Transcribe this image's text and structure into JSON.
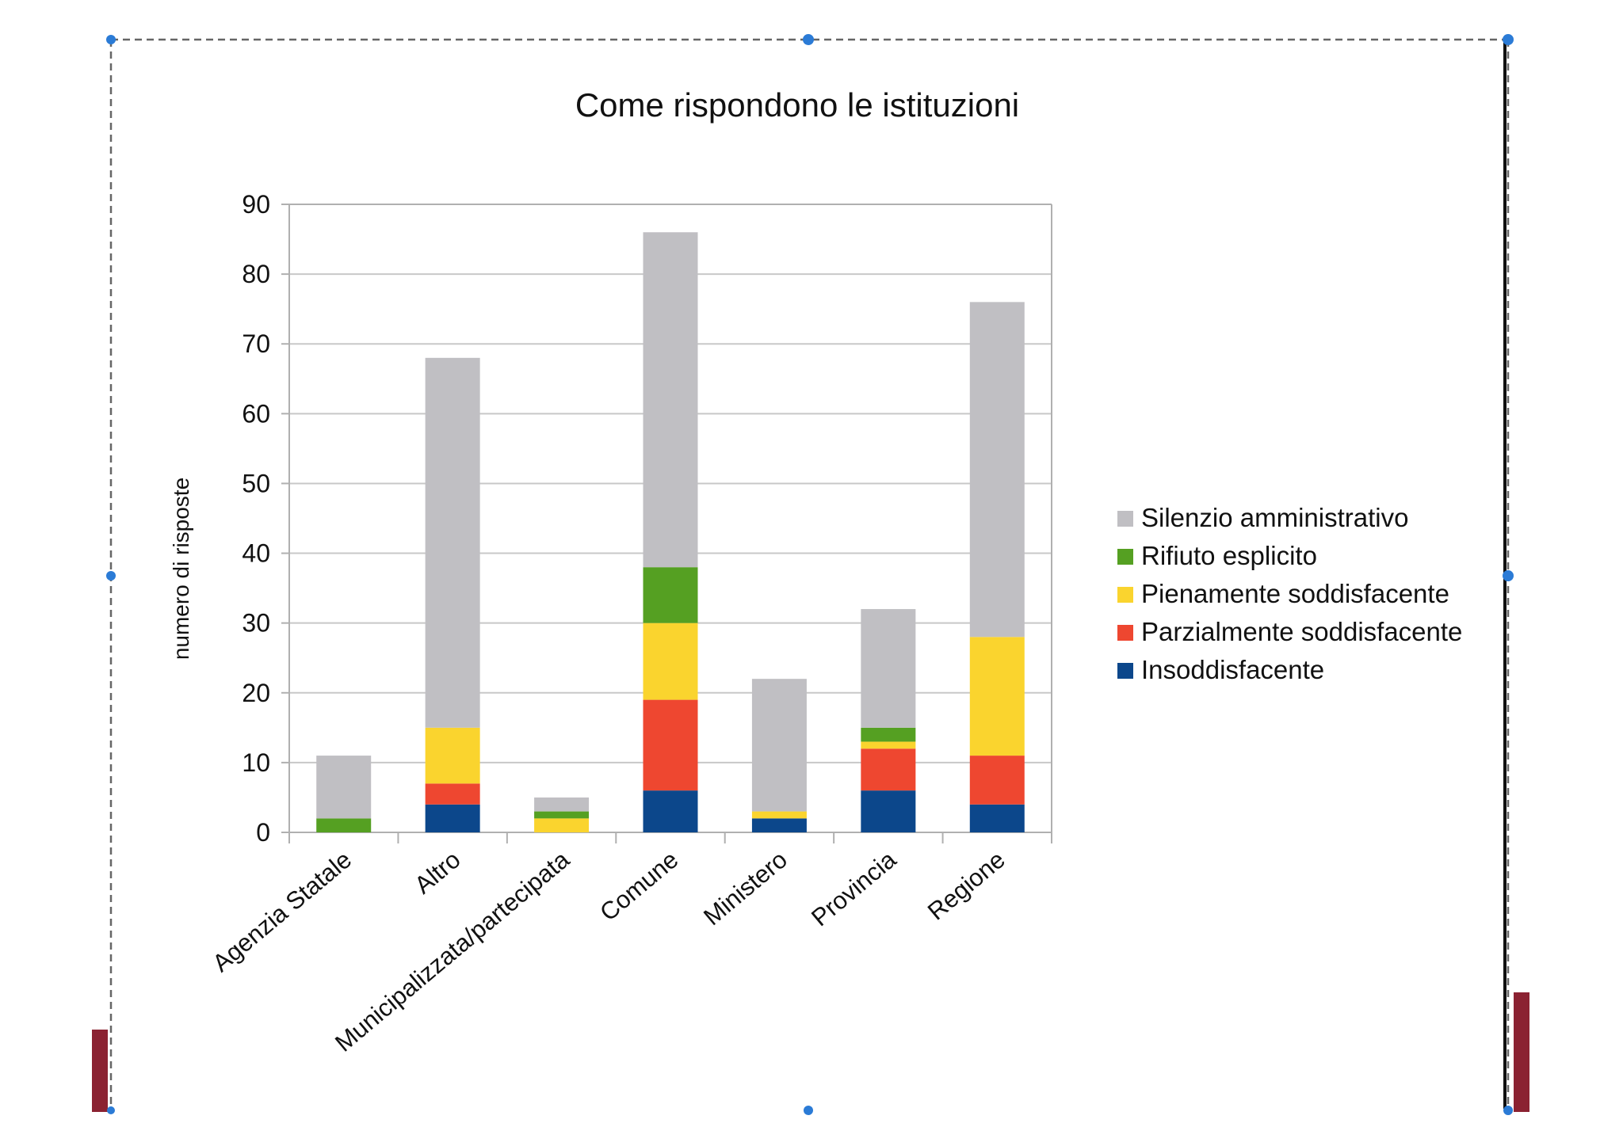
{
  "colors": {
    "silenzio": "#c0bfc3",
    "rifiuto": "#55a022",
    "pienamente": "#fad42e",
    "parzialmente": "#ee4730",
    "insoddisfacente": "#0c478b",
    "accent_bar": "#8b2232",
    "handle": "#2b7bd6"
  },
  "chart_data": {
    "type": "bar",
    "stacked": true,
    "title": "Come rispondono le istituzioni",
    "xlabel": "",
    "ylabel": "numero di risposte",
    "ylim": [
      0,
      90
    ],
    "yticks": [
      0,
      10,
      20,
      30,
      40,
      50,
      60,
      70,
      80,
      90
    ],
    "grid": true,
    "legend_position": "right",
    "categories": [
      "Agenzia Statale",
      "Altro",
      "Municipalizzata/partecipata",
      "Comune",
      "Ministero",
      "Provincia",
      "Regione"
    ],
    "series": [
      {
        "name": "Insoddisfacente",
        "key": "insoddisfacente",
        "values": [
          0,
          4,
          0,
          6,
          2,
          6,
          4
        ]
      },
      {
        "name": "Parzialmente soddisfacente",
        "key": "parzialmente",
        "values": [
          0,
          3,
          0,
          13,
          0,
          6,
          7
        ]
      },
      {
        "name": "Pienamente soddisfacente",
        "key": "pienamente",
        "values": [
          0,
          8,
          2,
          11,
          1,
          1,
          17
        ]
      },
      {
        "name": "Rifiuto esplicito",
        "key": "rifiuto",
        "values": [
          2,
          0,
          1,
          8,
          0,
          2,
          0
        ]
      },
      {
        "name": "Silenzio amministrativo",
        "key": "silenzio",
        "values": [
          9,
          53,
          2,
          48,
          19,
          17,
          48
        ]
      }
    ]
  }
}
